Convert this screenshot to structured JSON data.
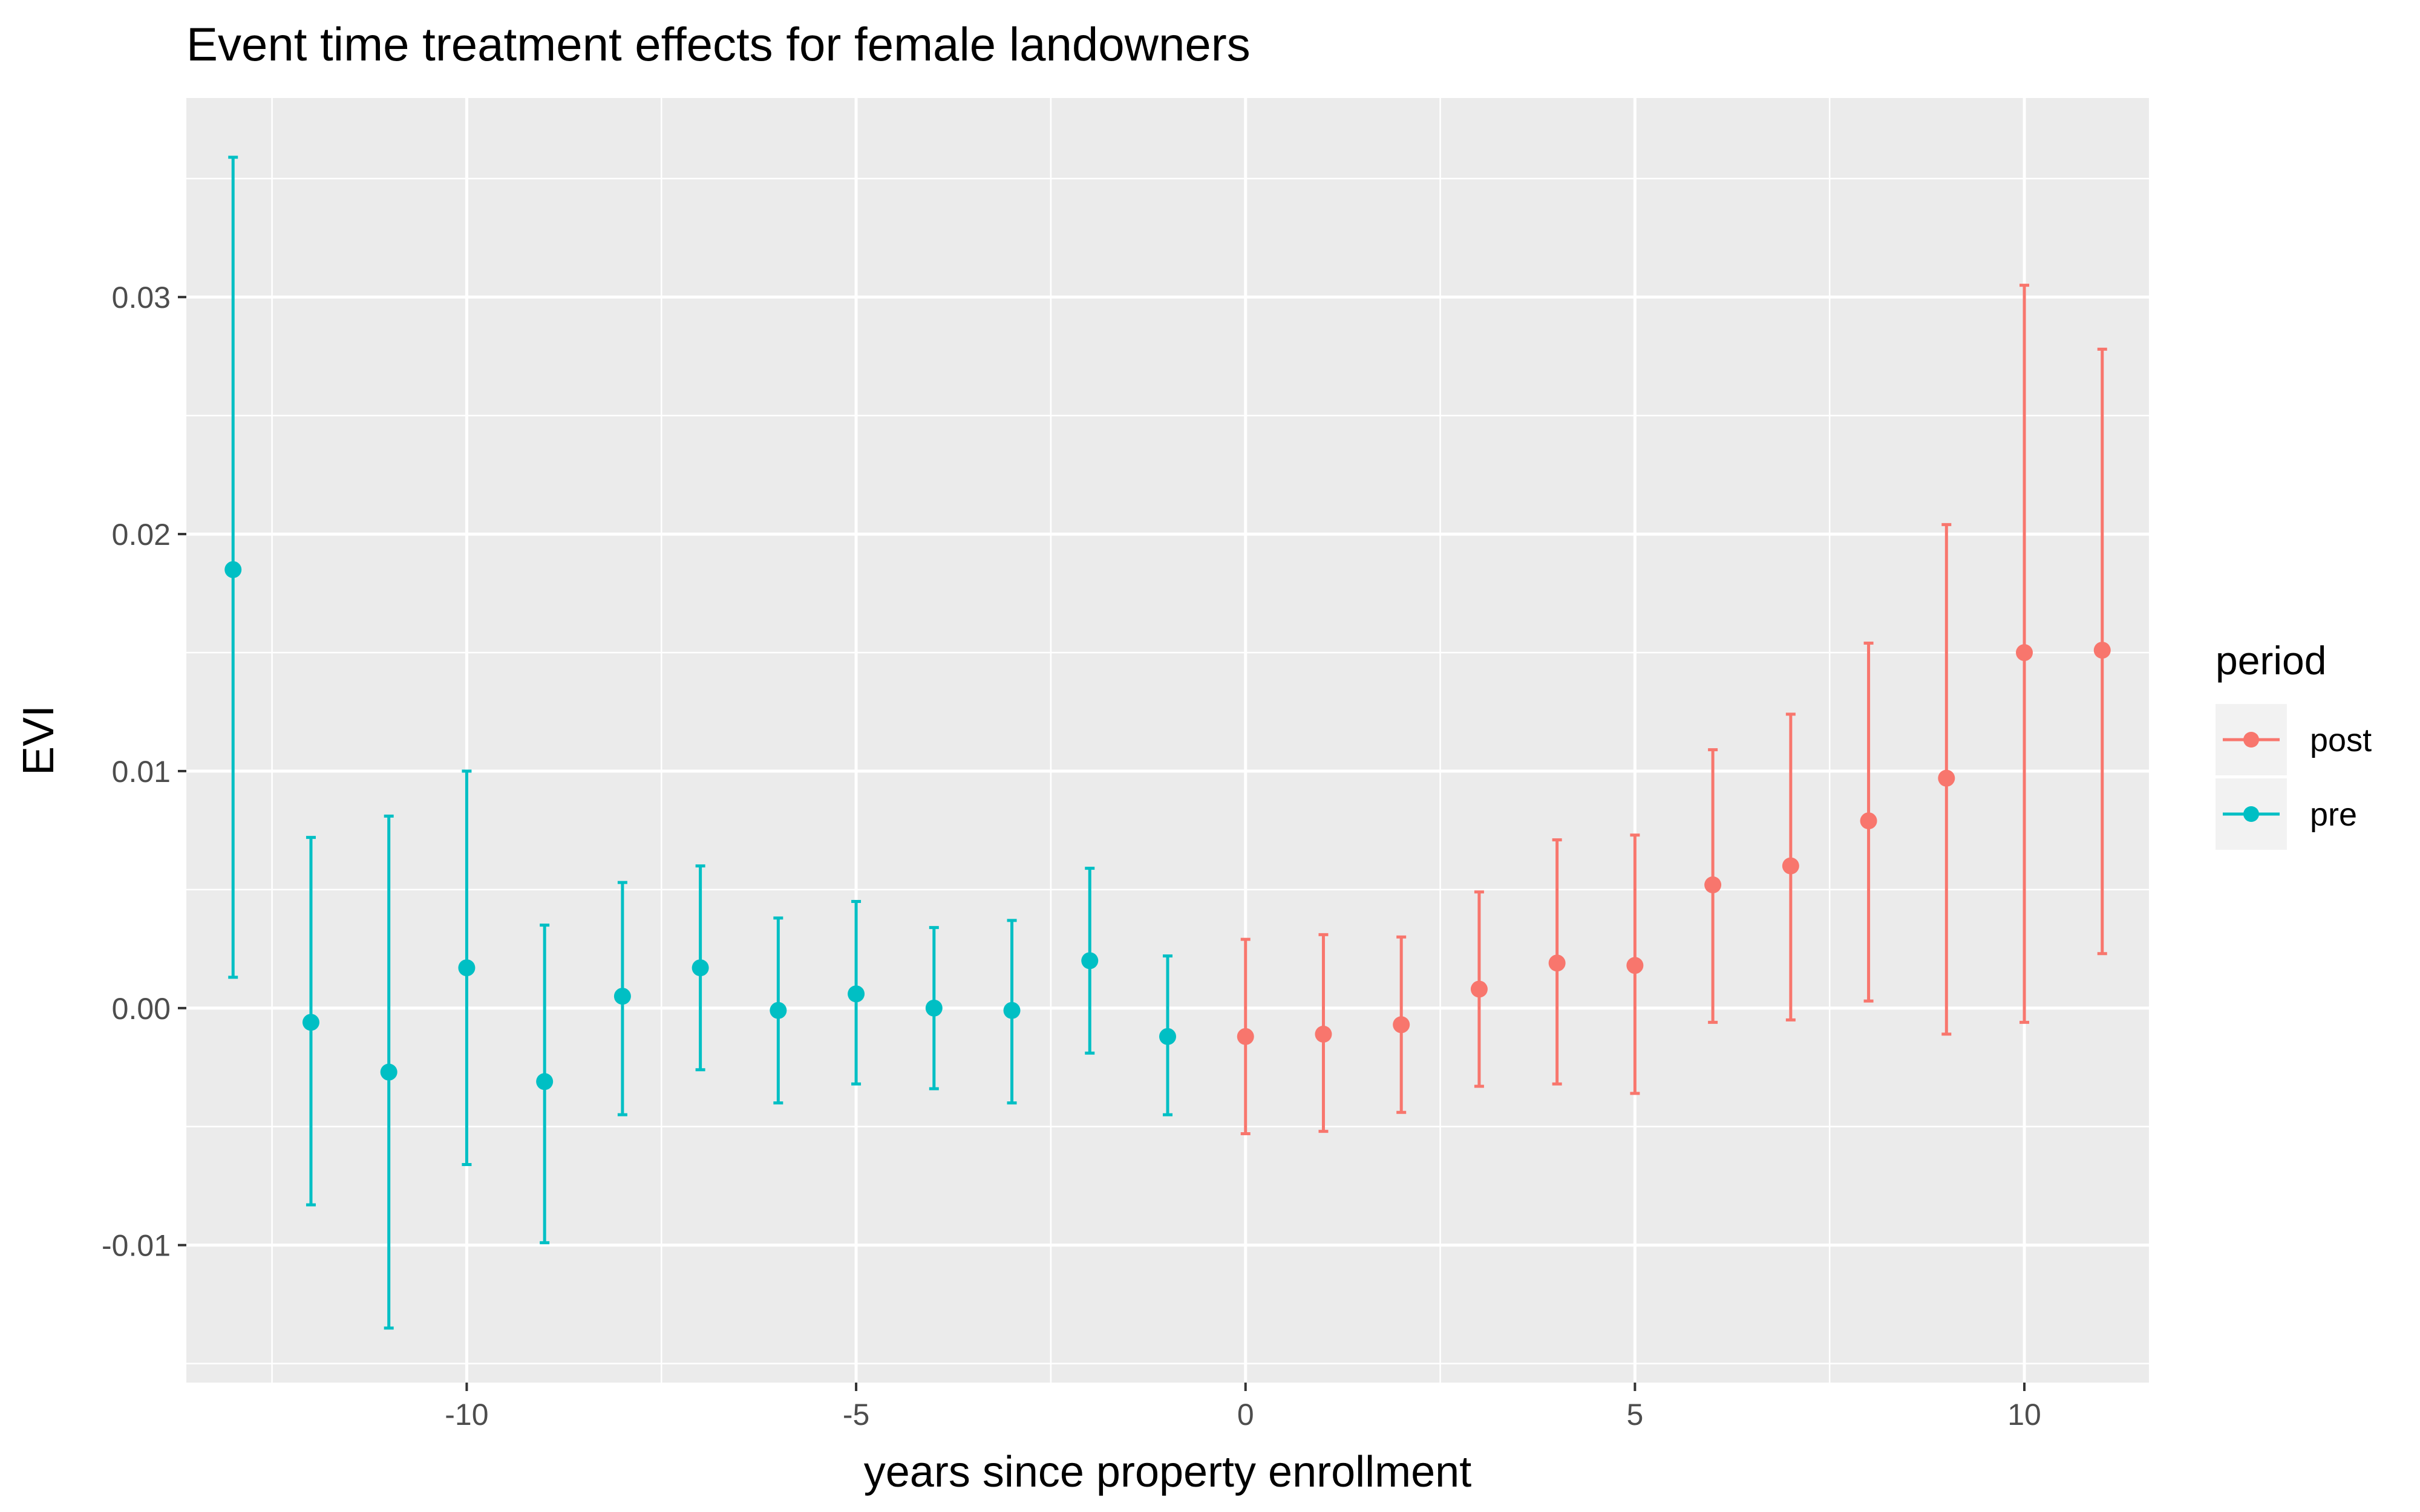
{
  "chart_data": {
    "type": "scatter",
    "title": "Event time treatment effects for female landowners",
    "xlabel": "years since property enrollment",
    "ylabel": "EVI",
    "xlim": [
      -13.6,
      11.6
    ],
    "ylim": [
      -0.0158,
      0.0384
    ],
    "x_ticks": [
      -10,
      -5,
      0,
      5,
      10
    ],
    "x_tick_labels": [
      "-10",
      "-5",
      "0",
      "5",
      "10"
    ],
    "y_ticks": [
      -0.01,
      0.0,
      0.01,
      0.02,
      0.03
    ],
    "y_tick_labels": [
      "-0.01",
      "0.00",
      "0.01",
      "0.02",
      "0.03"
    ],
    "grid": true,
    "legend": {
      "title": "period",
      "placement": "right",
      "entries": [
        "post",
        "pre"
      ]
    },
    "colors": {
      "post": "#F8766D",
      "pre": "#00BFC4",
      "panel_background": "#EBEBEB",
      "grid": "#FFFFFF"
    },
    "series": [
      {
        "name": "pre",
        "color": "#00BFC4",
        "points": [
          {
            "x": -13,
            "y": 0.0185,
            "ymin": 0.0013,
            "ymax": 0.0359
          },
          {
            "x": -12,
            "y": -0.0006,
            "ymin": -0.0083,
            "ymax": 0.0072
          },
          {
            "x": -11,
            "y": -0.0027,
            "ymin": -0.0135,
            "ymax": 0.0081
          },
          {
            "x": -10,
            "y": 0.0017,
            "ymin": -0.0066,
            "ymax": 0.01
          },
          {
            "x": -9,
            "y": -0.0031,
            "ymin": -0.0099,
            "ymax": 0.0035
          },
          {
            "x": -8,
            "y": 0.0005,
            "ymin": -0.0045,
            "ymax": 0.0053
          },
          {
            "x": -7,
            "y": 0.0017,
            "ymin": -0.0026,
            "ymax": 0.006
          },
          {
            "x": -6,
            "y": -0.0001,
            "ymin": -0.004,
            "ymax": 0.0038
          },
          {
            "x": -5,
            "y": 0.0006,
            "ymin": -0.0032,
            "ymax": 0.0045
          },
          {
            "x": -4,
            "y": 0.0,
            "ymin": -0.0034,
            "ymax": 0.0034
          },
          {
            "x": -3,
            "y": -0.0001,
            "ymin": -0.004,
            "ymax": 0.0037
          },
          {
            "x": -2,
            "y": 0.002,
            "ymin": -0.0019,
            "ymax": 0.0059
          },
          {
            "x": -1,
            "y": -0.0012,
            "ymin": -0.0045,
            "ymax": 0.0022
          }
        ]
      },
      {
        "name": "post",
        "color": "#F8766D",
        "points": [
          {
            "x": 0,
            "y": -0.0012,
            "ymin": -0.0053,
            "ymax": 0.0029
          },
          {
            "x": 1,
            "y": -0.0011,
            "ymin": -0.0052,
            "ymax": 0.0031
          },
          {
            "x": 2,
            "y": -0.0007,
            "ymin": -0.0044,
            "ymax": 0.003
          },
          {
            "x": 3,
            "y": 0.0008,
            "ymin": -0.0033,
            "ymax": 0.0049
          },
          {
            "x": 4,
            "y": 0.0019,
            "ymin": -0.0032,
            "ymax": 0.0071
          },
          {
            "x": 5,
            "y": 0.0018,
            "ymin": -0.0036,
            "ymax": 0.0073
          },
          {
            "x": 6,
            "y": 0.0052,
            "ymin": -0.0006,
            "ymax": 0.0109
          },
          {
            "x": 7,
            "y": 0.006,
            "ymin": -0.0005,
            "ymax": 0.0124
          },
          {
            "x": 8,
            "y": 0.0079,
            "ymin": 0.0003,
            "ymax": 0.0154
          },
          {
            "x": 9,
            "y": 0.0097,
            "ymin": -0.0011,
            "ymax": 0.0204
          },
          {
            "x": 10,
            "y": 0.015,
            "ymin": -0.0006,
            "ymax": 0.0305
          },
          {
            "x": 11,
            "y": 0.0151,
            "ymin": 0.0023,
            "ymax": 0.0278
          }
        ]
      }
    ]
  }
}
